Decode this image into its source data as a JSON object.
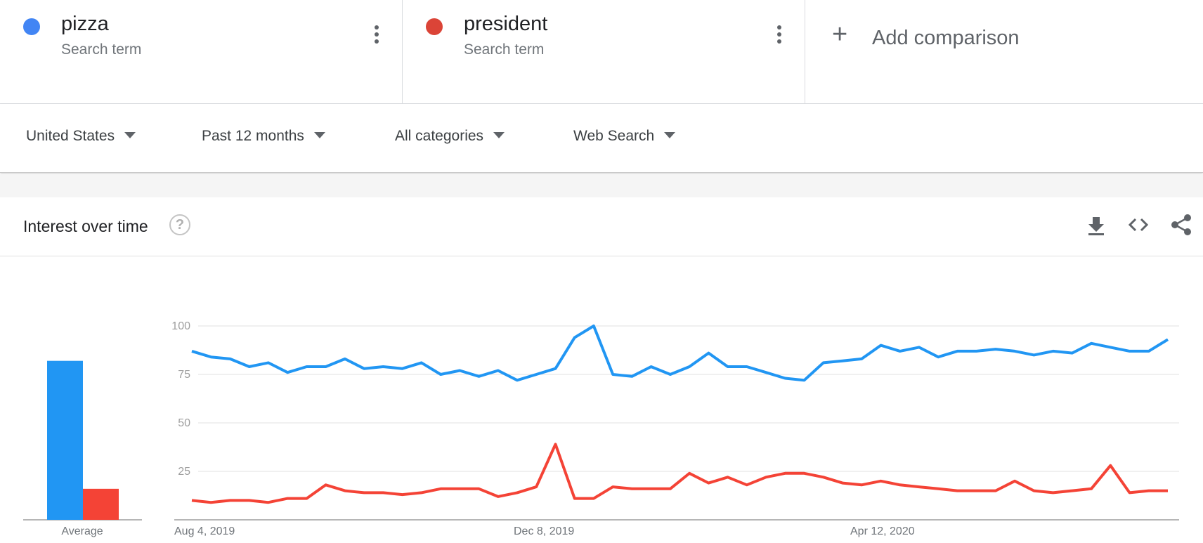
{
  "terms": [
    {
      "name": "pizza",
      "subtitle": "Search term",
      "color": "#4285f4"
    },
    {
      "name": "president",
      "subtitle": "Search term",
      "color": "#db4437"
    }
  ],
  "add_comparison": {
    "label": "Add comparison",
    "icon": "plus-icon"
  },
  "filters": {
    "region": "United States",
    "time": "Past 12 months",
    "category": "All categories",
    "search_type": "Web Search"
  },
  "card": {
    "title": "Interest over time",
    "icons": [
      "help-icon",
      "download-icon",
      "embed-icon",
      "share-icon"
    ]
  },
  "chart_data": {
    "type": "line",
    "y_ticks": [
      25,
      50,
      75,
      100
    ],
    "ylim": [
      0,
      100
    ],
    "x_tick_labels": [
      "Aug 4, 2019",
      "Dec 8, 2019",
      "Apr 12, 2020"
    ],
    "average_label": "Average",
    "averages": [
      82,
      16
    ],
    "series": [
      {
        "name": "pizza",
        "color": "#2196f3",
        "values": [
          87,
          84,
          83,
          79,
          81,
          76,
          79,
          79,
          83,
          78,
          79,
          78,
          81,
          75,
          77,
          74,
          77,
          72,
          75,
          78,
          94,
          100,
          75,
          74,
          79,
          75,
          79,
          86,
          79,
          79,
          76,
          73,
          72,
          81,
          82,
          83,
          90,
          87,
          89,
          84,
          87,
          87,
          88,
          87,
          85,
          87,
          86,
          91,
          89,
          87,
          87,
          93
        ]
      },
      {
        "name": "president",
        "color": "#f44336",
        "values": [
          10,
          9,
          10,
          10,
          9,
          11,
          11,
          18,
          15,
          14,
          14,
          13,
          14,
          16,
          16,
          16,
          12,
          14,
          17,
          39,
          11,
          11,
          17,
          16,
          16,
          16,
          24,
          19,
          22,
          18,
          22,
          24,
          24,
          22,
          19,
          18,
          20,
          18,
          17,
          16,
          15,
          15,
          15,
          20,
          15,
          14,
          15,
          16,
          28,
          14,
          15,
          15
        ]
      }
    ]
  }
}
